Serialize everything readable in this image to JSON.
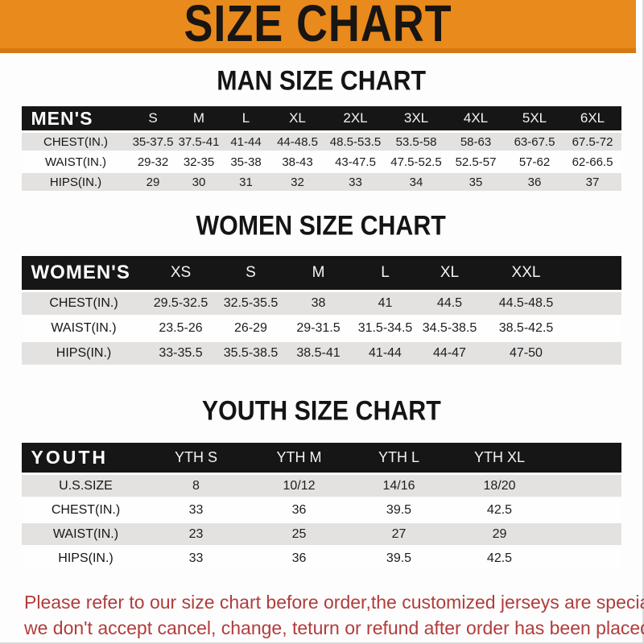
{
  "banner": {
    "title": "SIZE CHART"
  },
  "colors": {
    "banner_bg": "#E98A1D",
    "banner_edge": "#D67912",
    "table_header_bg": "#161616",
    "row_stripe_gray": "#E4E2E0",
    "footer_red": "#B13C3C"
  },
  "sections": [
    {
      "heading": "MAN SIZE CHART",
      "table": {
        "label": "MEN'S",
        "columns": [
          "S",
          "M",
          "L",
          "XL",
          "2XL",
          "3XL",
          "4XL",
          "5XL",
          "6XL"
        ],
        "rows": [
          {
            "label": "CHEST(IN.)",
            "values": [
              "35-37.5",
              "37.5-41",
              "41-44",
              "44-48.5",
              "48.5-53.5",
              "53.5-58",
              "58-63",
              "63-67.5",
              "67.5-72"
            ]
          },
          {
            "label": "WAIST(IN.)",
            "values": [
              "29-32",
              "32-35",
              "35-38",
              "38-43",
              "43-47.5",
              "47.5-52.5",
              "52.5-57",
              "57-62",
              "62-66.5"
            ]
          },
          {
            "label": "HIPS(IN.)",
            "values": [
              "29",
              "30",
              "31",
              "32",
              "33",
              "34",
              "35",
              "36",
              "37"
            ]
          }
        ]
      }
    },
    {
      "heading": "WOMEN SIZE CHART",
      "table": {
        "label": "WOMEN'S",
        "columns": [
          "XS",
          "S",
          "M",
          "L",
          "XL",
          "XXL"
        ],
        "rows": [
          {
            "label": "CHEST(IN.)",
            "values": [
              "29.5-32.5",
              "32.5-35.5",
              "38",
              "41",
              "44.5",
              "44.5-48.5"
            ]
          },
          {
            "label": "WAIST(IN.)",
            "values": [
              "23.5-26",
              "26-29",
              "29-31.5",
              "31.5-34.5",
              "34.5-38.5",
              "38.5-42.5"
            ]
          },
          {
            "label": "HIPS(IN.)",
            "values": [
              "33-35.5",
              "35.5-38.5",
              "38.5-41",
              "41-44",
              "44-47",
              "47-50"
            ]
          }
        ]
      }
    },
    {
      "heading": "YOUTH SIZE CHART",
      "table": {
        "label": "YOUTH",
        "columns": [
          "YTH S",
          "YTH M",
          "YTH L",
          "YTH XL"
        ],
        "rows": [
          {
            "label": "U.S.SIZE",
            "values": [
              "8",
              "10/12",
              "14/16",
              "18/20"
            ]
          },
          {
            "label": "CHEST(IN.)",
            "values": [
              "33",
              "36",
              "39.5",
              "42.5"
            ]
          },
          {
            "label": "WAIST(IN.)",
            "values": [
              "23",
              "25",
              "27",
              "29"
            ]
          },
          {
            "label": "HIPS(IN.)",
            "values": [
              "33",
              "36",
              "39.5",
              "42.5"
            ]
          }
        ]
      }
    }
  ],
  "footer": {
    "line1": "Please refer to our size chart before order,the customized jerseys are special products,",
    "line2": "we don't accept cancel, change, teturn or refund after order has been placed!"
  }
}
